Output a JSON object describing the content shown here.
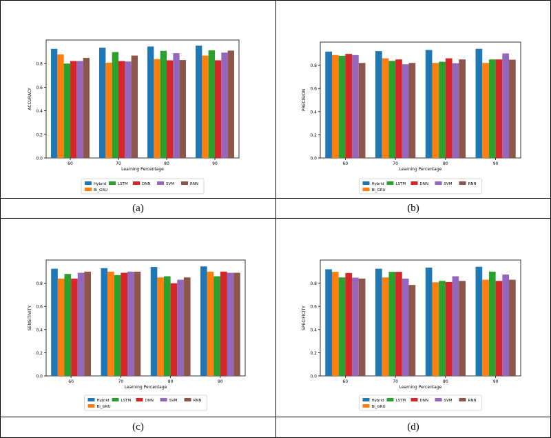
{
  "colors": {
    "Hybrid": "#1f77b4",
    "Bi_GRU": "#ff7f0e",
    "LSTM": "#2ca02c",
    "DNN": "#d62728",
    "SVM": "#9467bd",
    "RNN": "#8c564b"
  },
  "legend_order": [
    "Hybrid",
    "Bi_GRU",
    "LSTM",
    "DNN",
    "SVM",
    "RNN"
  ],
  "chart_data": [
    {
      "type": "bar",
      "caption": "(a)",
      "categories": [
        "60",
        "70",
        "80",
        "90"
      ],
      "xlabel": "Learning Percentage",
      "ylabel": "ACCURACY",
      "ylim": [
        0,
        1.0
      ],
      "yticks": [
        "0.0",
        "0.2",
        "0.4",
        "0.6",
        "0.8"
      ],
      "series": [
        {
          "name": "Hybrid",
          "values": [
            0.925,
            0.935,
            0.945,
            0.952
          ]
        },
        {
          "name": "Bi_GRU",
          "values": [
            0.878,
            0.808,
            0.838,
            0.868
          ]
        },
        {
          "name": "LSTM",
          "values": [
            0.8,
            0.898,
            0.908,
            0.913
          ]
        },
        {
          "name": "DNN",
          "values": [
            0.822,
            0.822,
            0.828,
            0.828
          ]
        },
        {
          "name": "SVM",
          "values": [
            0.822,
            0.818,
            0.888,
            0.893
          ]
        },
        {
          "name": "RNN",
          "values": [
            0.848,
            0.868,
            0.83,
            0.91
          ]
        }
      ]
    },
    {
      "type": "bar",
      "caption": "(b)",
      "categories": [
        "60",
        "70",
        "80",
        "90"
      ],
      "xlabel": "Learning Percentage",
      "ylabel": "PRECISION",
      "ylim": [
        0,
        1.0
      ],
      "yticks": [
        "0.0",
        "0.2",
        "0.4",
        "0.6",
        "0.8"
      ],
      "series": [
        {
          "name": "Hybrid",
          "values": [
            0.918,
            0.922,
            0.932,
            0.942
          ]
        },
        {
          "name": "Bi_GRU",
          "values": [
            0.888,
            0.86,
            0.82,
            0.82
          ]
        },
        {
          "name": "LSTM",
          "values": [
            0.882,
            0.838,
            0.83,
            0.85
          ]
        },
        {
          "name": "DNN",
          "values": [
            0.898,
            0.85,
            0.86,
            0.85
          ]
        },
        {
          "name": "SVM",
          "values": [
            0.888,
            0.808,
            0.818,
            0.902
          ]
        },
        {
          "name": "RNN",
          "values": [
            0.82,
            0.82,
            0.85,
            0.848
          ]
        }
      ]
    },
    {
      "type": "bar",
      "caption": "(c)",
      "categories": [
        "60",
        "70",
        "80",
        "90"
      ],
      "xlabel": "Learning Percentage",
      "ylabel": "SENSITIVITY",
      "ylim": [
        0,
        1.0
      ],
      "yticks": [
        "0.0",
        "0.2",
        "0.4",
        "0.6",
        "0.8"
      ],
      "series": [
        {
          "name": "Hybrid",
          "values": [
            0.925,
            0.93,
            0.94,
            0.945
          ]
        },
        {
          "name": "Bi_GRU",
          "values": [
            0.84,
            0.9,
            0.85,
            0.9
          ]
        },
        {
          "name": "LSTM",
          "values": [
            0.88,
            0.87,
            0.86,
            0.86
          ]
        },
        {
          "name": "DNN",
          "values": [
            0.84,
            0.89,
            0.8,
            0.9
          ]
        },
        {
          "name": "SVM",
          "values": [
            0.89,
            0.9,
            0.83,
            0.89
          ]
        },
        {
          "name": "RNN",
          "values": [
            0.9,
            0.9,
            0.85,
            0.89
          ]
        }
      ]
    },
    {
      "type": "bar",
      "caption": "(d)",
      "categories": [
        "60",
        "70",
        "80",
        "90"
      ],
      "xlabel": "Learning Percentage",
      "ylabel": "SPECIFICITY",
      "ylim": [
        0,
        1.0
      ],
      "yticks": [
        "0.0",
        "0.2",
        "0.4",
        "0.6",
        "0.8"
      ],
      "series": [
        {
          "name": "Hybrid",
          "values": [
            0.92,
            0.925,
            0.935,
            0.942
          ]
        },
        {
          "name": "Bi_GRU",
          "values": [
            0.898,
            0.85,
            0.808,
            0.83
          ]
        },
        {
          "name": "LSTM",
          "values": [
            0.85,
            0.898,
            0.82,
            0.9
          ]
        },
        {
          "name": "DNN",
          "values": [
            0.888,
            0.898,
            0.81,
            0.82
          ]
        },
        {
          "name": "SVM",
          "values": [
            0.848,
            0.84,
            0.86,
            0.875
          ]
        },
        {
          "name": "RNN",
          "values": [
            0.84,
            0.785,
            0.82,
            0.83
          ]
        }
      ]
    }
  ]
}
